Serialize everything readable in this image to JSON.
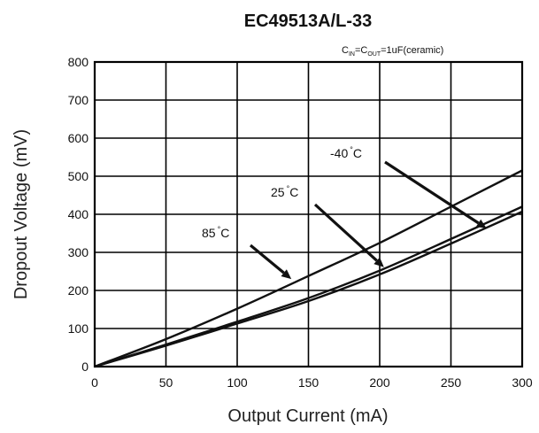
{
  "chart_data": {
    "type": "line",
    "title": "EC49513A/L-33",
    "condition": {
      "c_in_main": "C",
      "c_in_sub": "IN",
      "eq1": "=C",
      "c_out_sub": "OUT",
      "rest": "=1uF(ceramic)"
    },
    "xlabel": "Output Current (mA)",
    "ylabel": "Dropout Voltage (mV)",
    "xlim": [
      0,
      300
    ],
    "ylim": [
      0,
      800
    ],
    "xticks": [
      0,
      50,
      100,
      150,
      200,
      250,
      300
    ],
    "yticks": [
      0,
      100,
      200,
      300,
      400,
      500,
      600,
      700,
      800
    ],
    "grid": true,
    "degree_mark": "°",
    "series": [
      {
        "name": "85",
        "unit": "C",
        "x": [
          0,
          50,
          100,
          150,
          200,
          250,
          300
        ],
        "y": [
          0,
          72,
          152,
          238,
          325,
          420,
          515
        ],
        "label_anchor": [
          138,
          230
        ]
      },
      {
        "name": "25",
        "unit": "C",
        "x": [
          0,
          50,
          100,
          150,
          200,
          250,
          300
        ],
        "y": [
          0,
          58,
          118,
          180,
          252,
          335,
          420
        ],
        "label_anchor": [
          203,
          261
        ]
      },
      {
        "name": "-40",
        "unit": "C",
        "x": [
          0,
          50,
          100,
          150,
          200,
          250,
          300
        ],
        "y": [
          0,
          55,
          113,
          172,
          242,
          323,
          407
        ],
        "label_anchor": [
          275,
          363
        ]
      }
    ]
  }
}
